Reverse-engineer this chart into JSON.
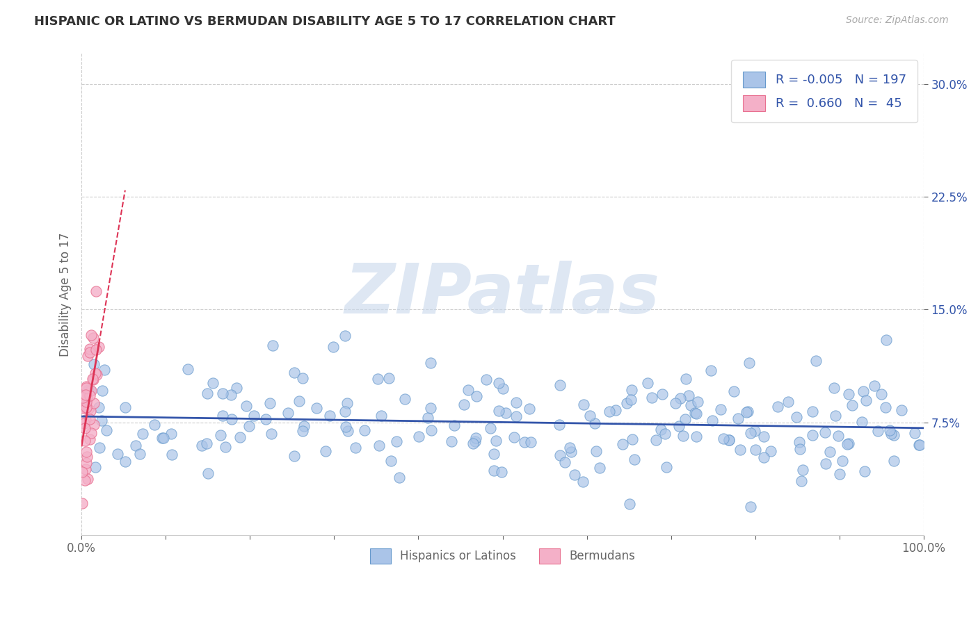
{
  "title": "HISPANIC OR LATINO VS BERMUDAN DISABILITY AGE 5 TO 17 CORRELATION CHART",
  "source": "Source: ZipAtlas.com",
  "ylabel": "Disability Age 5 to 17",
  "xlim": [
    0,
    1.0
  ],
  "ylim": [
    0.0,
    0.32
  ],
  "xtick_labels": [
    "0.0%",
    "100.0%"
  ],
  "ytick_labels": [
    "7.5%",
    "15.0%",
    "22.5%",
    "30.0%"
  ],
  "ytick_values": [
    0.075,
    0.15,
    0.225,
    0.3
  ],
  "blue_color": "#aac4e8",
  "blue_edge_color": "#6699cc",
  "pink_color": "#f4b0c8",
  "pink_edge_color": "#e87090",
  "blue_line_color": "#3355aa",
  "pink_line_color": "#dd3355",
  "watermark_text": "ZIPatlas",
  "watermark_color": "#c8d8ec",
  "blue_R": -0.005,
  "blue_N": 197,
  "pink_R": 0.66,
  "pink_N": 45,
  "background_color": "#ffffff",
  "grid_color": "#cccccc",
  "title_color": "#333333",
  "source_color": "#aaaaaa",
  "axis_label_color": "#666666",
  "tick_label_color_y": "#3355aa",
  "tick_label_color_x": "#666666"
}
